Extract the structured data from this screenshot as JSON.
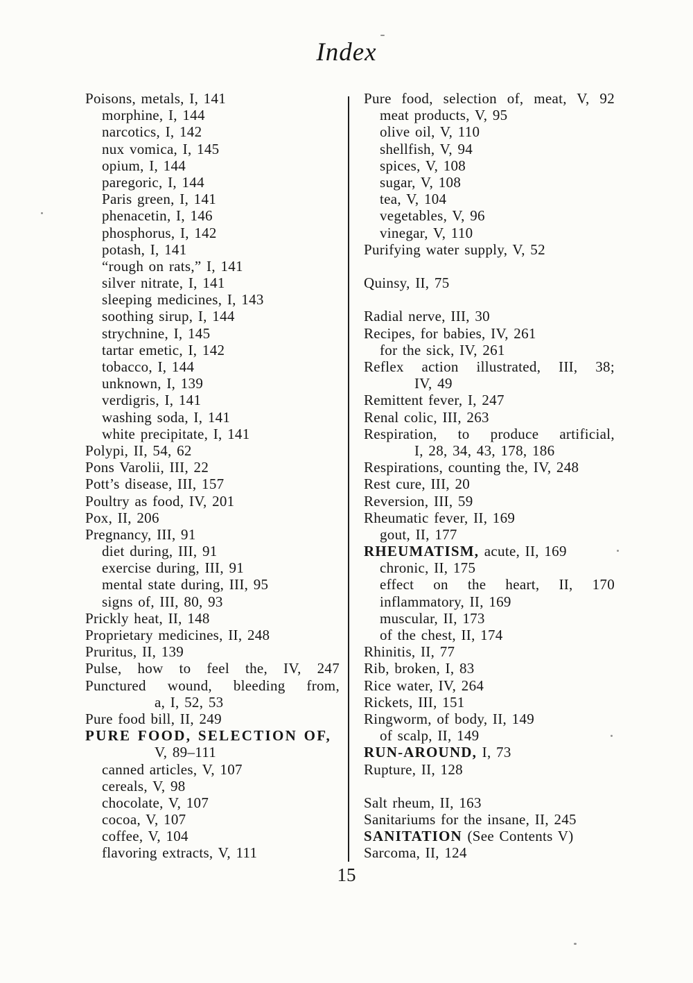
{
  "page": {
    "title": "Index",
    "page_number": "15"
  },
  "colors": {
    "paper": "#fcfcf9",
    "ink": "#161616"
  },
  "left_column": {
    "entries": [
      {
        "text": "Poisons, metals, I, 141",
        "indent": 0
      },
      {
        "text": "morphine, I, 144",
        "indent": 1
      },
      {
        "text": "narcotics, I, 142",
        "indent": 1
      },
      {
        "text": "nux vomica, I, 145",
        "indent": 1
      },
      {
        "text": "opium, I, 144",
        "indent": 1
      },
      {
        "text": "paregoric, I, 144",
        "indent": 1
      },
      {
        "text": "Paris green, I, 141",
        "indent": 1
      },
      {
        "text": "phenacetin, I, 146",
        "indent": 1
      },
      {
        "text": "phosphorus, I, 142",
        "indent": 1
      },
      {
        "text": "potash, I, 141",
        "indent": 1
      },
      {
        "text": "“rough on rats,” I, 141",
        "indent": 1
      },
      {
        "text": "silver nitrate, I, 141",
        "indent": 1
      },
      {
        "text": "sleeping medicines, I, 143",
        "indent": 1
      },
      {
        "text": "soothing sirup, I, 144",
        "indent": 1
      },
      {
        "text": "strychnine, I, 145",
        "indent": 1
      },
      {
        "text": "tartar emetic, I, 142",
        "indent": 1
      },
      {
        "text": "tobacco, I, 144",
        "indent": 1
      },
      {
        "text": "unknown, I, 139",
        "indent": 1
      },
      {
        "text": "verdigris, I, 141",
        "indent": 1
      },
      {
        "text": "washing soda, I, 141",
        "indent": 1
      },
      {
        "text": "white precipitate, I, 141",
        "indent": 1
      },
      {
        "text": "Polypi, II, 54, 62",
        "indent": 0
      },
      {
        "text": "Pons Varolii, III, 22",
        "indent": 0
      },
      {
        "text": "Pott’s disease, III, 157",
        "indent": 0
      },
      {
        "text": "Poultry as food, IV, 201",
        "indent": 0
      },
      {
        "text": "Pox, II, 206",
        "indent": 0
      },
      {
        "text": "Pregnancy, III, 91",
        "indent": 0
      },
      {
        "text": "diet during, III, 91",
        "indent": 1
      },
      {
        "text": "exercise during, III, 91",
        "indent": 1
      },
      {
        "text": "mental state during, III, 95",
        "indent": 1
      },
      {
        "text": "signs of, III, 80, 93",
        "indent": 1
      },
      {
        "text": "Prickly heat, II, 148",
        "indent": 0
      },
      {
        "text": "Proprietary medicines, II, 248",
        "indent": 0
      },
      {
        "text": "Pruritus, II, 139",
        "indent": 0
      },
      {
        "text": "Pulse, how to feel the, IV, 247",
        "indent": 0,
        "justify": true
      },
      {
        "text": "Punctured wound, bleeding from,",
        "indent": 0,
        "justify": true
      },
      {
        "text": "a, I, 52, 53",
        "indent": 2
      },
      {
        "text": "Pure food bill, II, 249",
        "indent": 0
      },
      {
        "bold": "PURE FOOD, SELECTION OF,",
        "indent": 0
      },
      {
        "text": "V, 89–111",
        "indent": 2
      },
      {
        "text": "canned articles, V, 107",
        "indent": 1
      },
      {
        "text": "cereals, V, 98",
        "indent": 1
      },
      {
        "text": "chocolate, V, 107",
        "indent": 1
      },
      {
        "text": "cocoa, V, 107",
        "indent": 1
      },
      {
        "text": "coffee, V, 104",
        "indent": 1
      },
      {
        "text": "flavoring extracts, V, 111",
        "indent": 1
      }
    ]
  },
  "right_column": {
    "entries": [
      {
        "text": "Pure food, selection of, meat, V, 92",
        "indent": 0,
        "justify": true
      },
      {
        "text": "meat products, V, 95",
        "indent": 1
      },
      {
        "text": "olive oil, V, 110",
        "indent": 1
      },
      {
        "text": "shellfish, V, 94",
        "indent": 1
      },
      {
        "text": "spices, V, 108",
        "indent": 1
      },
      {
        "text": "sugar, V, 108",
        "indent": 1
      },
      {
        "text": "tea, V, 104",
        "indent": 1
      },
      {
        "text": "vegetables, V, 96",
        "indent": 1
      },
      {
        "text": "vinegar, V, 110",
        "indent": 1
      },
      {
        "text": "Purifying water supply, V, 52",
        "indent": 0
      },
      {
        "blank": true
      },
      {
        "text": "Quinsy, II, 75",
        "indent": 0
      },
      {
        "blank": true
      },
      {
        "text": "Radial nerve, III, 30",
        "indent": 0
      },
      {
        "text": "Recipes, for babies, IV, 261",
        "indent": 0
      },
      {
        "text": "for the sick, IV, 261",
        "indent": 1
      },
      {
        "text": "Reflex action illustrated, III, 38;",
        "indent": 0,
        "justify": true
      },
      {
        "text": "IV, 49",
        "indent": 2
      },
      {
        "text": "Remittent fever, I, 247",
        "indent": 0
      },
      {
        "text": "Renal colic, III, 263",
        "indent": 0
      },
      {
        "text": "Respiration, to produce artificial,",
        "indent": 0,
        "justify": true
      },
      {
        "text": "I, 28, 34, 43, 178, 186",
        "indent": 2
      },
      {
        "text": "Respirations, counting the, IV, 248",
        "indent": 0
      },
      {
        "text": "Rest cure, III, 20",
        "indent": 0
      },
      {
        "text": "Reversion, III, 59",
        "indent": 0
      },
      {
        "text": "Rheumatic fever, II, 169",
        "indent": 0
      },
      {
        "text": "gout, II, 177",
        "indent": 1
      },
      {
        "bold": "RHEUMATISM,",
        "text": " acute, II, 169",
        "indent": 0
      },
      {
        "text": "chronic, II, 175",
        "indent": 1
      },
      {
        "text": "effect on the heart, II, 170",
        "indent": 1,
        "justify": true
      },
      {
        "text": "inflammatory, II, 169",
        "indent": 1
      },
      {
        "text": "muscular, II, 173",
        "indent": 1
      },
      {
        "text": "of the chest, II, 174",
        "indent": 1
      },
      {
        "text": "Rhinitis, II, 77",
        "indent": 0
      },
      {
        "text": "Rib, broken, I, 83",
        "indent": 0
      },
      {
        "text": "Rice water, IV, 264",
        "indent": 0
      },
      {
        "text": "Rickets, III, 151",
        "indent": 0
      },
      {
        "text": "Ringworm, of body, II, 149",
        "indent": 0
      },
      {
        "text": "of scalp, II, 149",
        "indent": 1
      },
      {
        "bold": "RUN-AROUND,",
        "text": " I, 73",
        "indent": 0
      },
      {
        "text": "Rupture, II, 128",
        "indent": 0
      },
      {
        "blank": true
      },
      {
        "text": "Salt rheum, II, 163",
        "indent": 0
      },
      {
        "text": "Sanitariums for the insane, II, 245",
        "indent": 0
      },
      {
        "bold": "SANITATION",
        "text": " (See Contents V)",
        "indent": 0
      },
      {
        "text": "Sarcoma, II, 124",
        "indent": 0
      }
    ]
  }
}
